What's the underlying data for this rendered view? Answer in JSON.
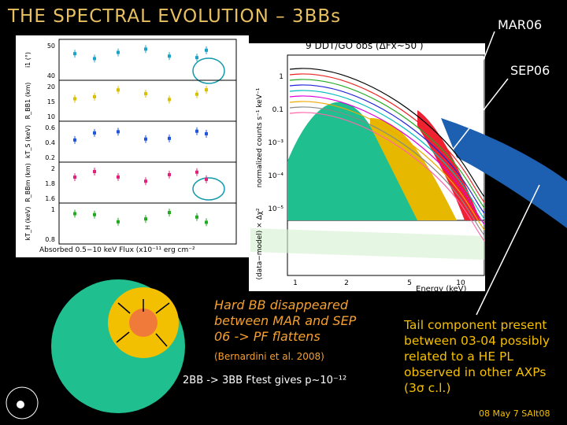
{
  "slide": {
    "title": "THE SPECTRAL EVOLUTION – 3BBs",
    "tag_mar": "MAR06",
    "tag_sep": "SEP06",
    "obs_label": "9 DDT/GO obs (ΔFx~50 )",
    "left_plot": {
      "panels": [
        {
          "label": "i1 (°)",
          "ticks": [
            "50",
            "40"
          ]
        },
        {
          "label": "R_BB1 (km)",
          "ticks": [
            "20",
            "15",
            "10"
          ]
        },
        {
          "label": "kT_S (keV)",
          "ticks": [
            "0.6",
            "0.4",
            "0.2"
          ]
        },
        {
          "label": "R_BBm (km)",
          "ticks": [
            "2",
            "1.8",
            "1.6"
          ]
        },
        {
          "label": "kT_H (keV)",
          "ticks": [
            "1",
            "0.8"
          ]
        }
      ],
      "x_label": "Absorbed 0.5−10 keV Flux (x10⁻¹¹ erg cm⁻²"
    },
    "spectrum_plot": {
      "y_label": "normalized counts s⁻¹ keV⁻¹",
      "resid_label": "(data−model) × Δχ²",
      "yticks": [
        "1",
        "0.1",
        "10⁻³",
        "10⁻⁴",
        "10⁻⁵"
      ],
      "xticks": [
        "1",
        "2",
        "5",
        "10"
      ],
      "x_label": "Energy (keV)"
    },
    "note_hard": "Hard BB disappeared between MAR and SEP 06 -> PF flattens",
    "citation": "(Bernardini et al. 2008)",
    "ftest": "2BB -> 3BB Ftest gives p~10⁻¹²",
    "note_tail": "Tail component present between 03-04 possibly related to a HE PL observed in other AXPs (3σ c.l.)",
    "footer": "08 May 7 SAIt08"
  }
}
